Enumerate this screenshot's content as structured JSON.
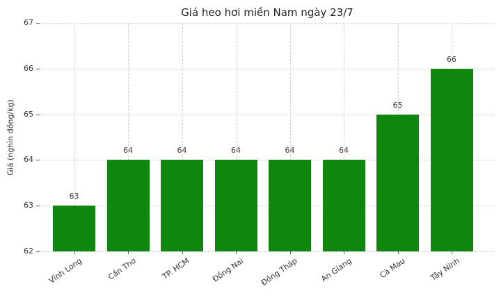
{
  "chart_data": {
    "type": "bar",
    "title": "Giá heo hơi miền Nam ngày 23/7",
    "xlabel": "",
    "ylabel": "Giá (nghìn đồng/kg)",
    "categories": [
      "Vĩnh Long",
      "Cần Thơ",
      "TP. HCM",
      "Đồng Nai",
      "Đồng Tháp",
      "An Giang",
      "Cà Mau",
      "Tây Ninh"
    ],
    "values": [
      63,
      64,
      64,
      64,
      64,
      64,
      65,
      66
    ],
    "ylim": [
      62,
      67
    ],
    "yticks": [
      62,
      63,
      64,
      65,
      66,
      67
    ],
    "value_labels_shown": true,
    "legend": "none",
    "grid": "dotted, horizontal and vertical",
    "colors": {
      "bar": "#0f870f",
      "grid": "#cdcdcd",
      "text": "#333333",
      "title": "#1f1f1f",
      "background": "#ffffff"
    }
  }
}
